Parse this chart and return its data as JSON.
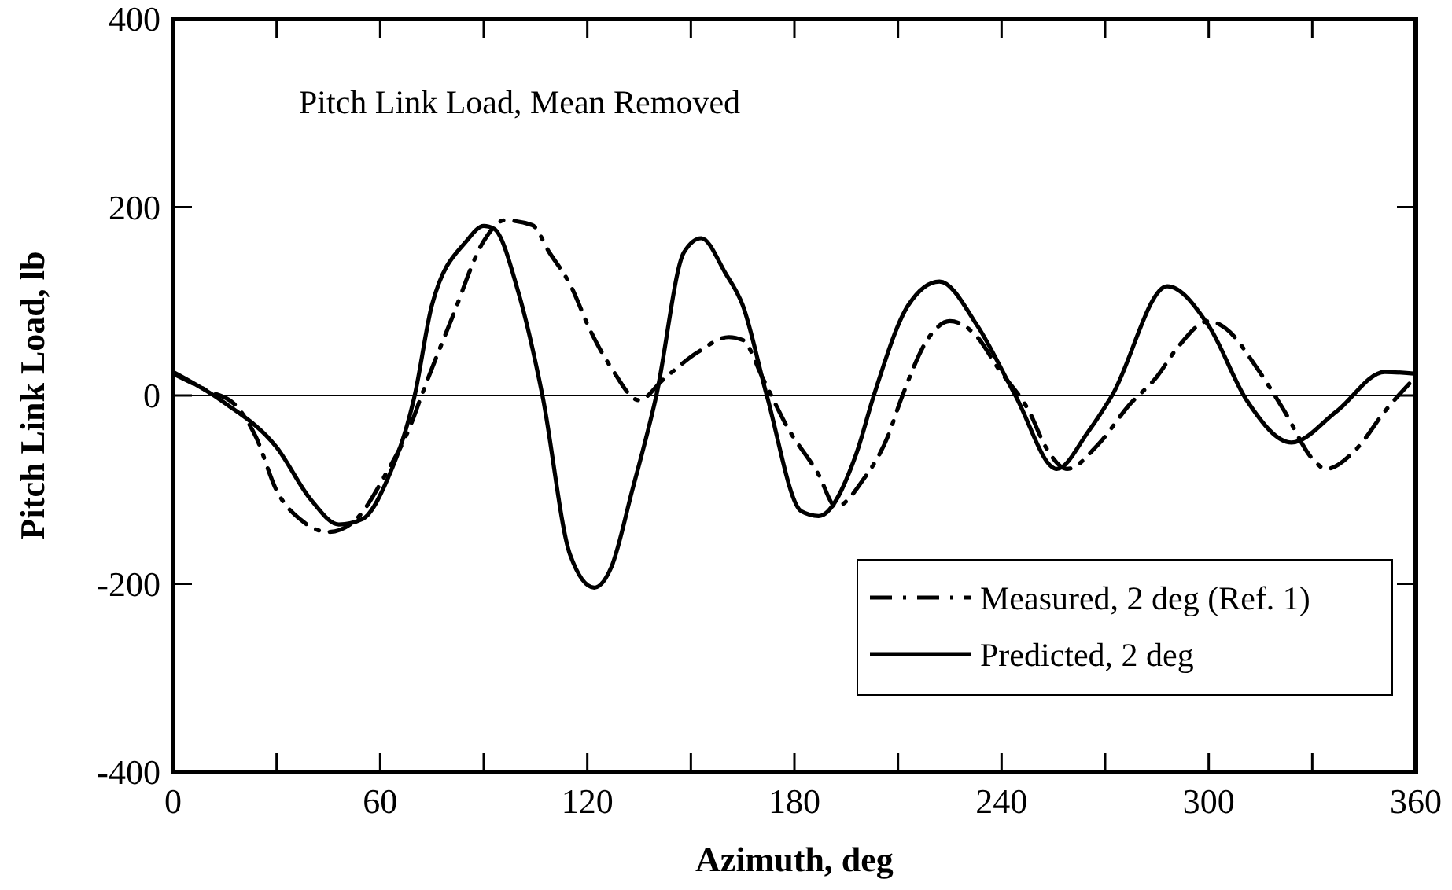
{
  "chart_data": {
    "type": "line",
    "xlabel": "Azimuth, deg",
    "ylabel": "Pitch Link Load, lb",
    "annotations": [
      "Pitch Link Load, Mean Removed"
    ],
    "xlim": [
      0,
      360
    ],
    "ylim": [
      -400,
      400
    ],
    "xticks": [
      0,
      {
        "value": 30,
        "label": null
      },
      60,
      {
        "value": 90,
        "label": null
      },
      120,
      {
        "value": 150,
        "label": null
      },
      180,
      {
        "value": 210,
        "label": null
      },
      240,
      {
        "value": 270,
        "label": null
      },
      300,
      {
        "value": 330,
        "label": null
      },
      360
    ],
    "yticks": [
      -400,
      -200,
      0,
      200,
      400
    ],
    "ref_lines": [
      {
        "axis": "y",
        "value": 0,
        "color": "#000000"
      }
    ],
    "legend": "bottom right",
    "grid": false,
    "series": [
      {
        "name": "Measured, 2 deg (Ref. 1)",
        "color": "#000000",
        "line_style": "dashed",
        "x": [
          0,
          10,
          18,
          24,
          30,
          37,
          45,
          52,
          62,
          69,
          72,
          81,
          90,
          96,
          104,
          109,
          115,
          121,
          127,
          135,
          142,
          152,
          161,
          165,
          171,
          178,
          187,
          192,
          200,
          207,
          211,
          219,
          225,
          233,
          239,
          248,
          253,
          259,
          268,
          277,
          285,
          291,
          300,
          305,
          314,
          322,
          330,
          334,
          343,
          351,
          360
        ],
        "values": [
          23,
          5,
          -10,
          -44,
          -101,
          -132,
          -145,
          -135,
          -81,
          -30,
          0,
          84,
          164,
          186,
          181,
          152,
          118,
          68,
          29,
          -5,
          17,
          46,
          62,
          59,
          17,
          -34,
          -84,
          -118,
          -89,
          -44,
          -3,
          62,
          79,
          62,
          29,
          -17,
          -56,
          -78,
          -52,
          -10,
          20,
          51,
          79,
          71,
          29,
          -17,
          -67,
          -78,
          -56,
          -17,
          20
        ]
      },
      {
        "name": "Predicted, 2 deg",
        "color": "#000000",
        "line_style": "solid",
        "x": [
          0,
          15,
          30,
          40,
          48,
          55,
          62,
          70,
          75,
          85,
          90,
          93,
          100,
          107,
          115,
          122,
          127,
          133,
          140,
          148,
          153,
          160,
          165,
          172,
          182,
          187,
          198,
          203,
          213,
          222,
          233,
          244,
          256,
          265,
          272,
          288,
          300,
          311,
          324,
          337,
          351,
          360
        ],
        "values": [
          25,
          -8,
          -55,
          -111,
          -137,
          -131,
          -90,
          0,
          96,
          164,
          180,
          177,
          110,
          0,
          -169,
          -204,
          -182,
          -101,
          0,
          152,
          167,
          130,
          96,
          0,
          -123,
          -128,
          -61,
          0,
          96,
          121,
          74,
          0,
          -78,
          -39,
          0,
          116,
          74,
          -5,
          -50,
          -17,
          25,
          23
        ]
      }
    ]
  }
}
